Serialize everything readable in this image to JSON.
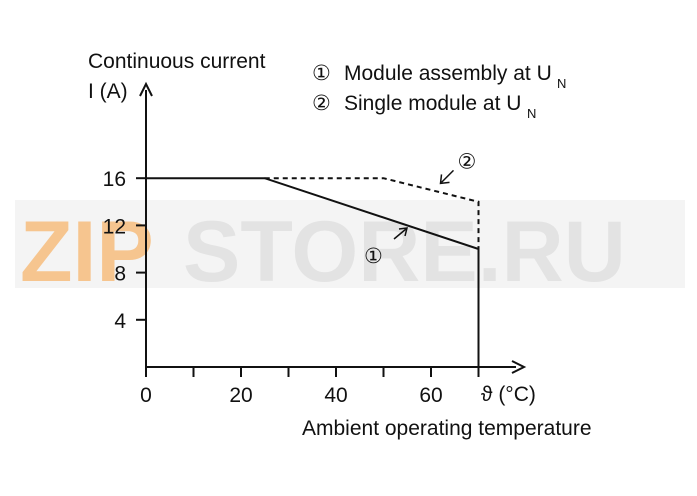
{
  "chart_data": {
    "type": "line",
    "ylabel_line1": "Continuous current",
    "ylabel_line2": "I (A)",
    "xlabel": "Ambient operating temperature",
    "x_unit": "ϑ (°C)",
    "x_ticks": [
      0,
      20,
      40,
      60
    ],
    "x_minor_ticks": [
      10,
      30,
      50,
      70
    ],
    "y_ticks": [
      16,
      12,
      8,
      4
    ],
    "xlim": [
      0,
      80
    ],
    "ylim": [
      0,
      24
    ],
    "legend": [
      {
        "marker": "①",
        "text": "Module assembly at U",
        "sub": "N"
      },
      {
        "marker": "②",
        "text": "Single module at U",
        "sub": "N"
      }
    ],
    "series": [
      {
        "marker": "①",
        "style": "solid",
        "x": [
          0,
          25,
          70,
          70
        ],
        "y": [
          16,
          16,
          10,
          0
        ]
      },
      {
        "marker": "②",
        "style": "dashed",
        "x": [
          25,
          50,
          70,
          70
        ],
        "y": [
          16,
          16,
          14,
          10
        ]
      }
    ],
    "annotations": [
      {
        "marker": "①",
        "x": 48,
        "y": 10
      },
      {
        "marker": "②",
        "x": 66,
        "y": 17
      }
    ],
    "watermark": {
      "text1": "ZIP",
      "text2": "STORE.RU",
      "color1": "#f6c58f",
      "color2": "#e6e6e6"
    },
    "colors": {
      "line": "#111111",
      "axis": "#111111"
    }
  }
}
